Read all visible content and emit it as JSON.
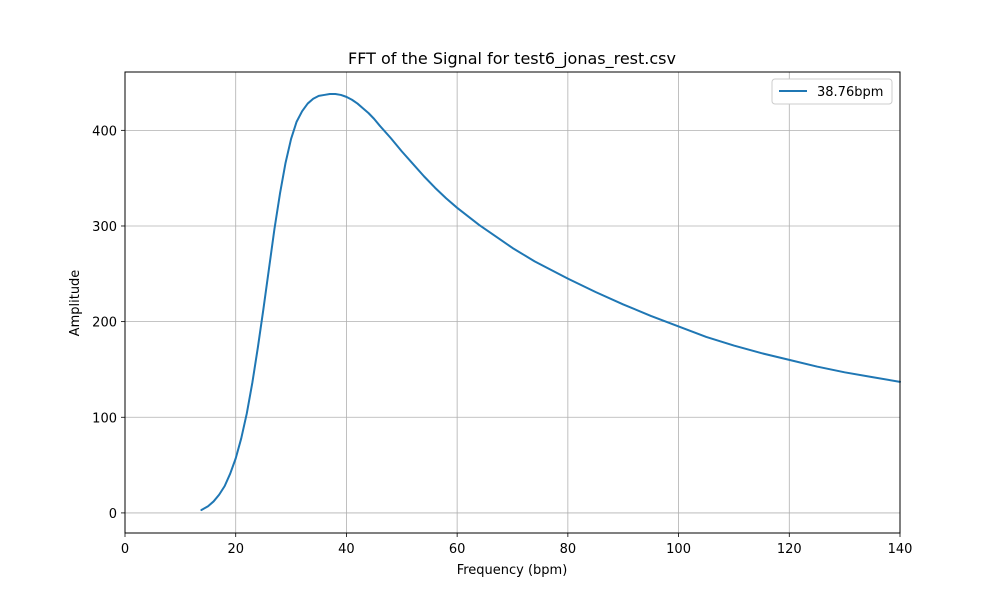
{
  "chart_data": {
    "type": "line",
    "title": "FFT of the Signal for test6_jonas_rest.csv",
    "xlabel": "Frequency (bpm)",
    "ylabel": "Amplitude",
    "xlim": [
      0,
      140
    ],
    "ylim": [
      -21,
      461
    ],
    "xticks": [
      0,
      20,
      40,
      60,
      80,
      100,
      120,
      140
    ],
    "yticks": [
      0,
      100,
      200,
      300,
      400
    ],
    "grid": true,
    "legend_position": "top-right",
    "series": [
      {
        "name": "38.76bpm",
        "color": "#1f77b4",
        "x": [
          13.8,
          15,
          16,
          17,
          18,
          19,
          20,
          21,
          22,
          23,
          24,
          25,
          26,
          27,
          28,
          29,
          30,
          31,
          32,
          33,
          34,
          35,
          36,
          37,
          38,
          39,
          40,
          41,
          42,
          43,
          44,
          45,
          46,
          48,
          50,
          52,
          54,
          56,
          58,
          60,
          62,
          64,
          66,
          68,
          70,
          72,
          74,
          76,
          78,
          80,
          85,
          90,
          95,
          100,
          105,
          110,
          115,
          120,
          125,
          130,
          135,
          140
        ],
        "y": [
          3,
          7,
          12,
          19,
          28,
          41,
          57,
          78,
          104,
          136,
          173,
          213,
          255,
          297,
          334,
          366,
          391,
          409,
          420,
          428,
          433,
          436,
          437,
          438,
          438,
          437,
          435,
          432,
          428,
          423,
          418,
          412,
          405,
          392,
          378,
          365,
          352,
          340,
          329,
          319,
          310,
          301,
          293,
          285,
          277,
          270,
          263,
          257,
          251,
          245,
          231,
          218,
          206,
          195,
          184,
          175,
          167,
          160,
          153,
          147,
          142,
          137
        ]
      }
    ]
  }
}
